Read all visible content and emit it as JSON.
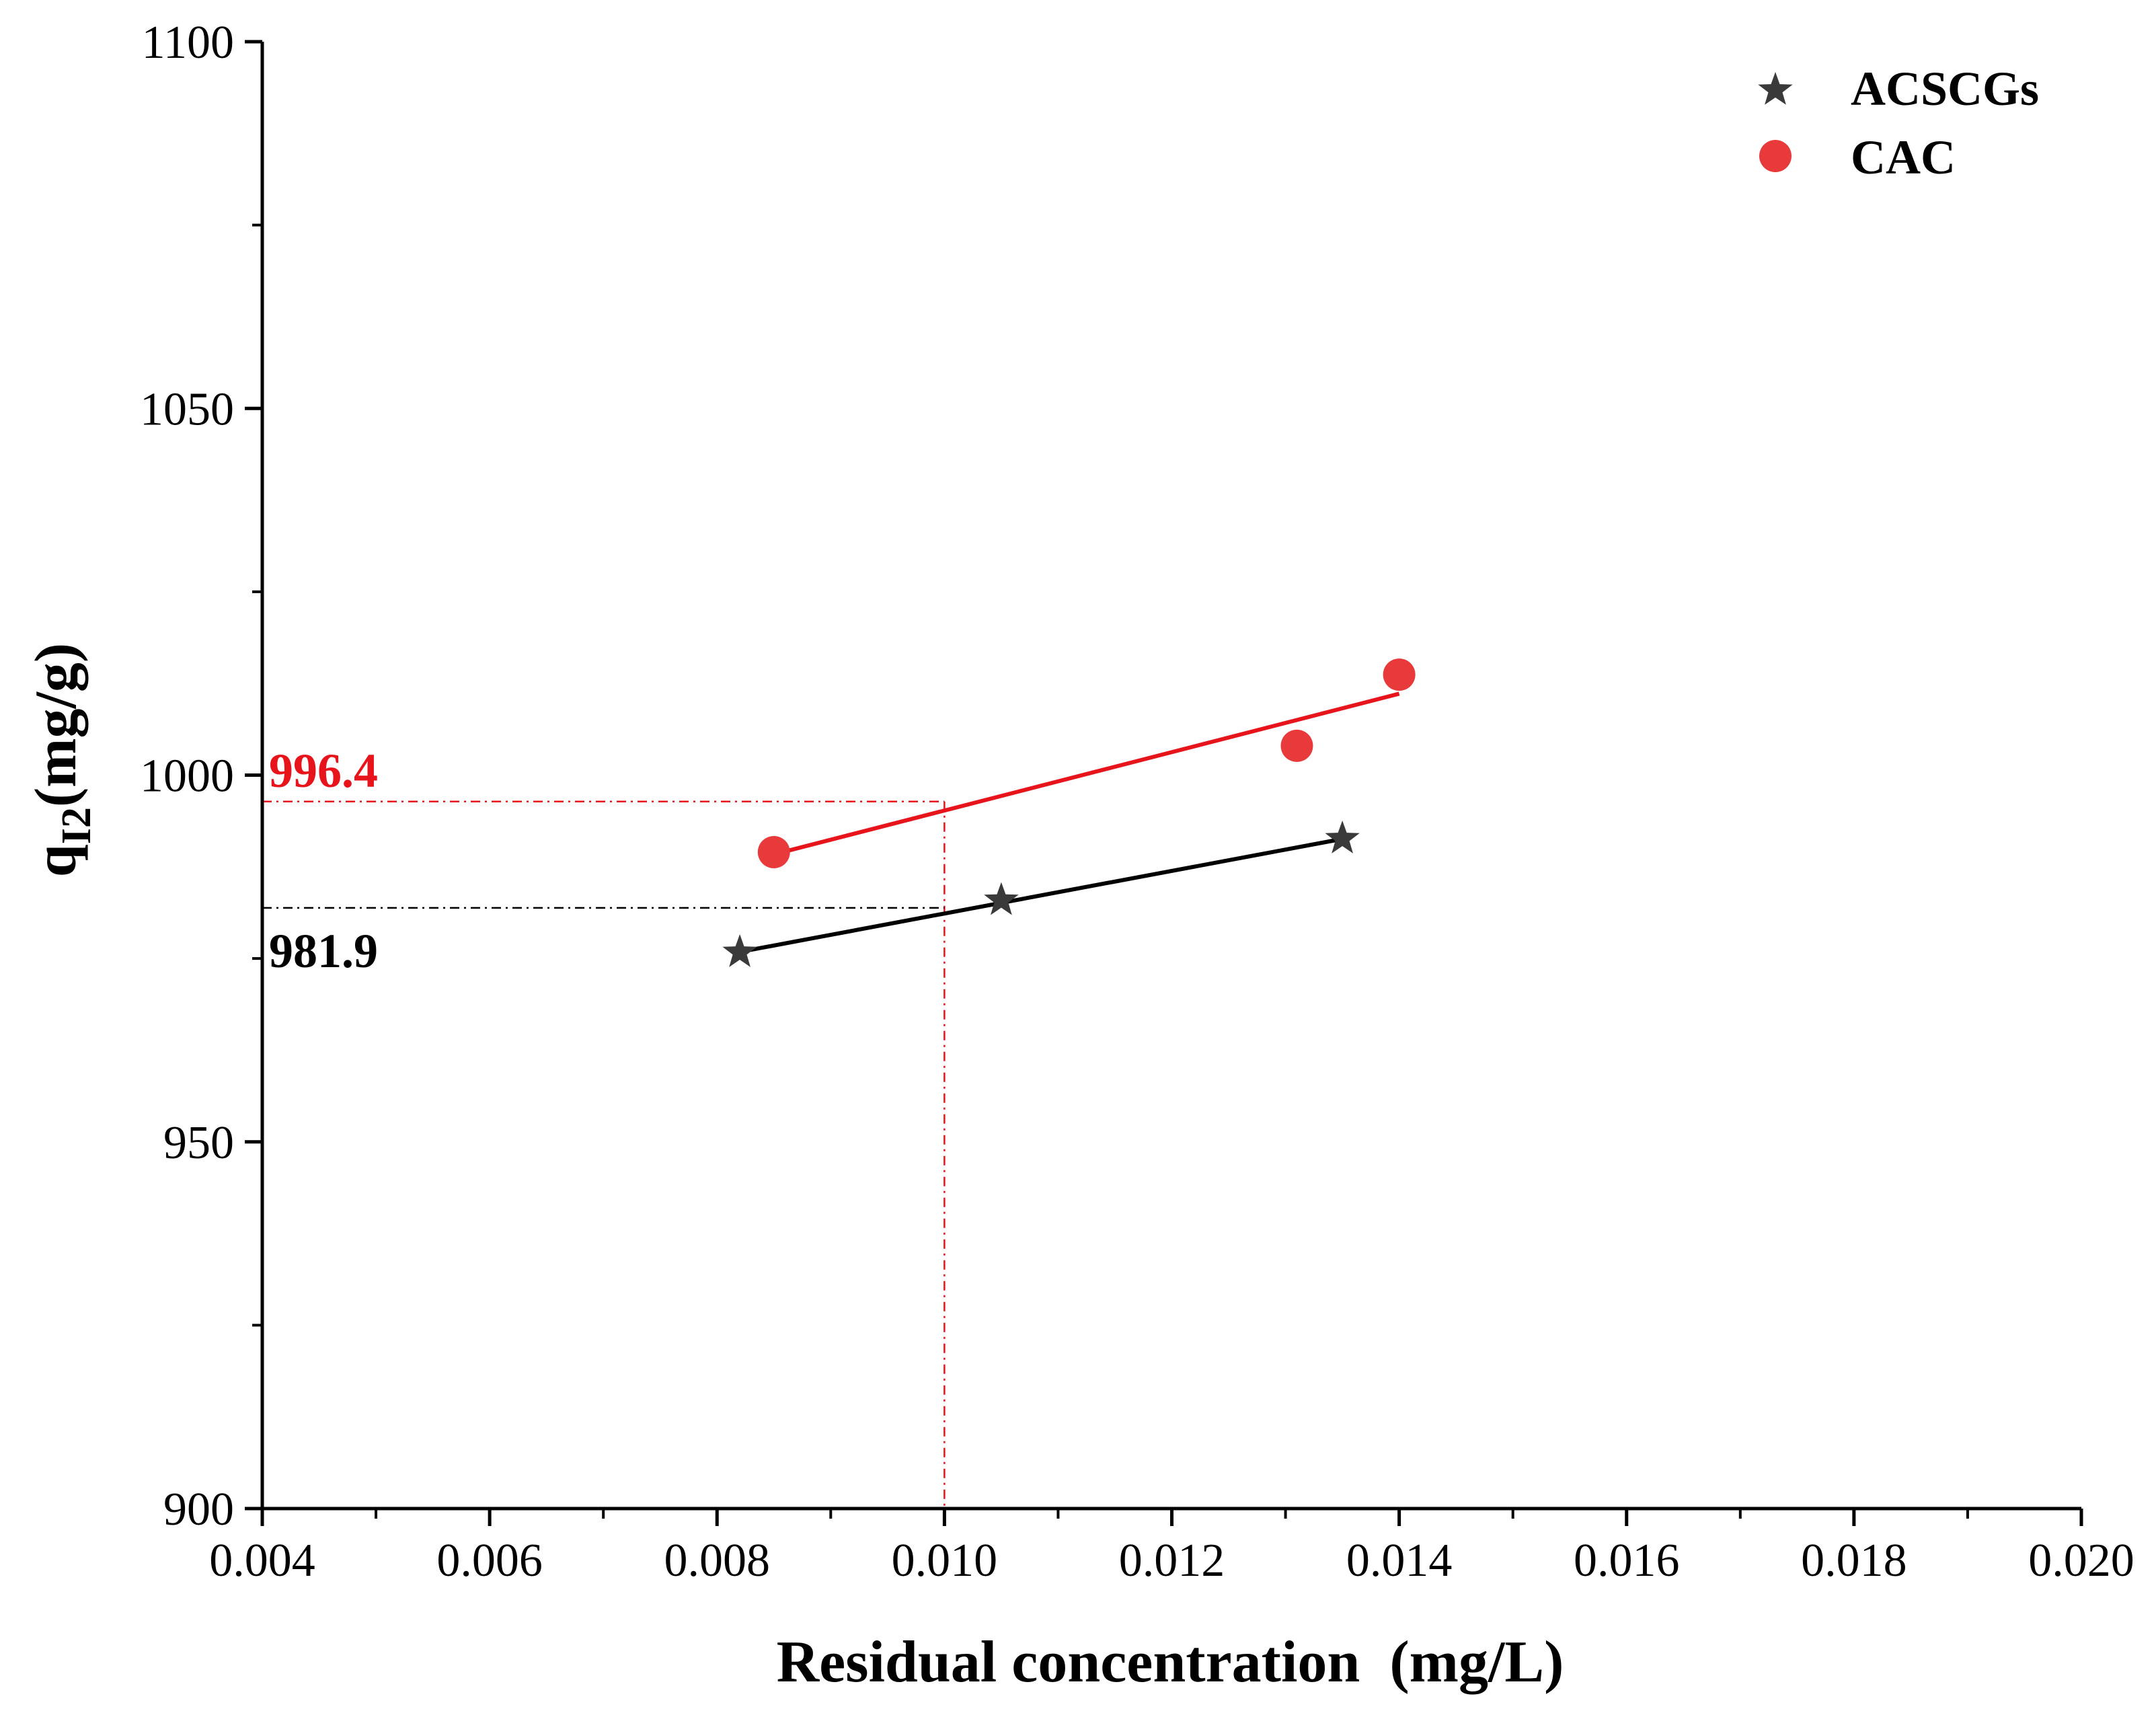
{
  "chart_data": {
    "type": "scatter",
    "title": "",
    "xlabel": "Residual concentration  (mg/L)",
    "ylabel": {
      "base": "q",
      "subscript": "I2",
      "suffix": "(mg/g)"
    },
    "xlim": [
      0.004,
      0.02
    ],
    "ylim": [
      900,
      1100
    ],
    "x_ticks": [
      0.004,
      0.006,
      0.008,
      0.01,
      0.012,
      0.014,
      0.016,
      0.018,
      0.02
    ],
    "x_tick_labels": [
      "0.004",
      "0.006",
      "0.008",
      "0.010",
      "0.012",
      "0.014",
      "0.016",
      "0.018",
      "0.020"
    ],
    "x_minor_ticks": [
      0.005,
      0.007,
      0.009,
      0.011,
      0.013,
      0.015,
      0.017,
      0.019
    ],
    "y_ticks": [
      900,
      950,
      1000,
      1050,
      1100
    ],
    "y_tick_labels": [
      "900",
      "950",
      "1000",
      "1050",
      "1100"
    ],
    "y_minor_ticks": [
      925,
      975,
      1025,
      1075
    ],
    "grid": false,
    "legend_position": "top-right",
    "series": [
      {
        "name": "ACSCGs",
        "marker": "star",
        "color": "#3a3a3a",
        "line_color": "#000000",
        "points": [
          {
            "x": 0.0082,
            "y": 976.2
          },
          {
            "x": 0.0105,
            "y": 983.3
          },
          {
            "x": 0.0135,
            "y": 991.7
          }
        ],
        "fit": {
          "x": [
            0.0082,
            0.0135
          ],
          "y": [
            975.9,
            991.3
          ]
        }
      },
      {
        "name": "CAC",
        "marker": "circle",
        "color": "#e83a3a",
        "line_color": "#e8141c",
        "points": [
          {
            "x": 0.0085,
            "y": 989.5
          },
          {
            "x": 0.0131,
            "y": 1004.0
          },
          {
            "x": 0.014,
            "y": 1013.7
          }
        ],
        "fit": {
          "x": [
            0.0085,
            0.014
          ],
          "y": [
            989.2,
            1011.1
          ]
        }
      }
    ],
    "reference_x": 0.01,
    "annotations": [
      {
        "text": "996.4",
        "y": 996.4,
        "color": "#e8141c",
        "line_color": "#e8141c",
        "label_side": "above"
      },
      {
        "text": "981.9",
        "y": 981.9,
        "color": "#000000",
        "line_color": "#000000",
        "label_side": "below"
      }
    ]
  }
}
